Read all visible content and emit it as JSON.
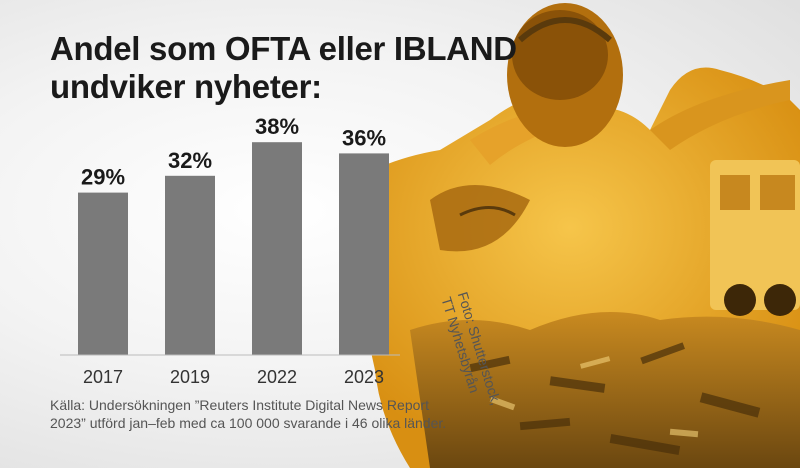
{
  "title": {
    "line1": "Andel som OFTA eller IBLAND",
    "line2": "undviker nyheter:"
  },
  "chart_data": {
    "type": "bar",
    "categories": [
      "2017",
      "2019",
      "2022",
      "2023"
    ],
    "values": [
      29,
      32,
      38,
      36
    ],
    "data_labels": [
      "29%",
      "32%",
      "38%",
      "36%"
    ],
    "ylim": [
      0,
      40
    ],
    "grid": false,
    "bar_color": "#7a7a7a",
    "label_color": "#1a1a1a",
    "axis_color": "#bbbbbb"
  },
  "credit": {
    "line1": "Foto: Shutterstock,",
    "line2": "TT Nyhetsbyrån"
  },
  "source": {
    "line1": "Källa: Undersökningen ”Reuters Institute Digital News Report",
    "line2": "2023” utförd jan–feb med ca 100 000 svarande i 46 olika länder."
  },
  "colors": {
    "accent": "#e9a41b",
    "photo_dark": "#5a3a0c"
  }
}
